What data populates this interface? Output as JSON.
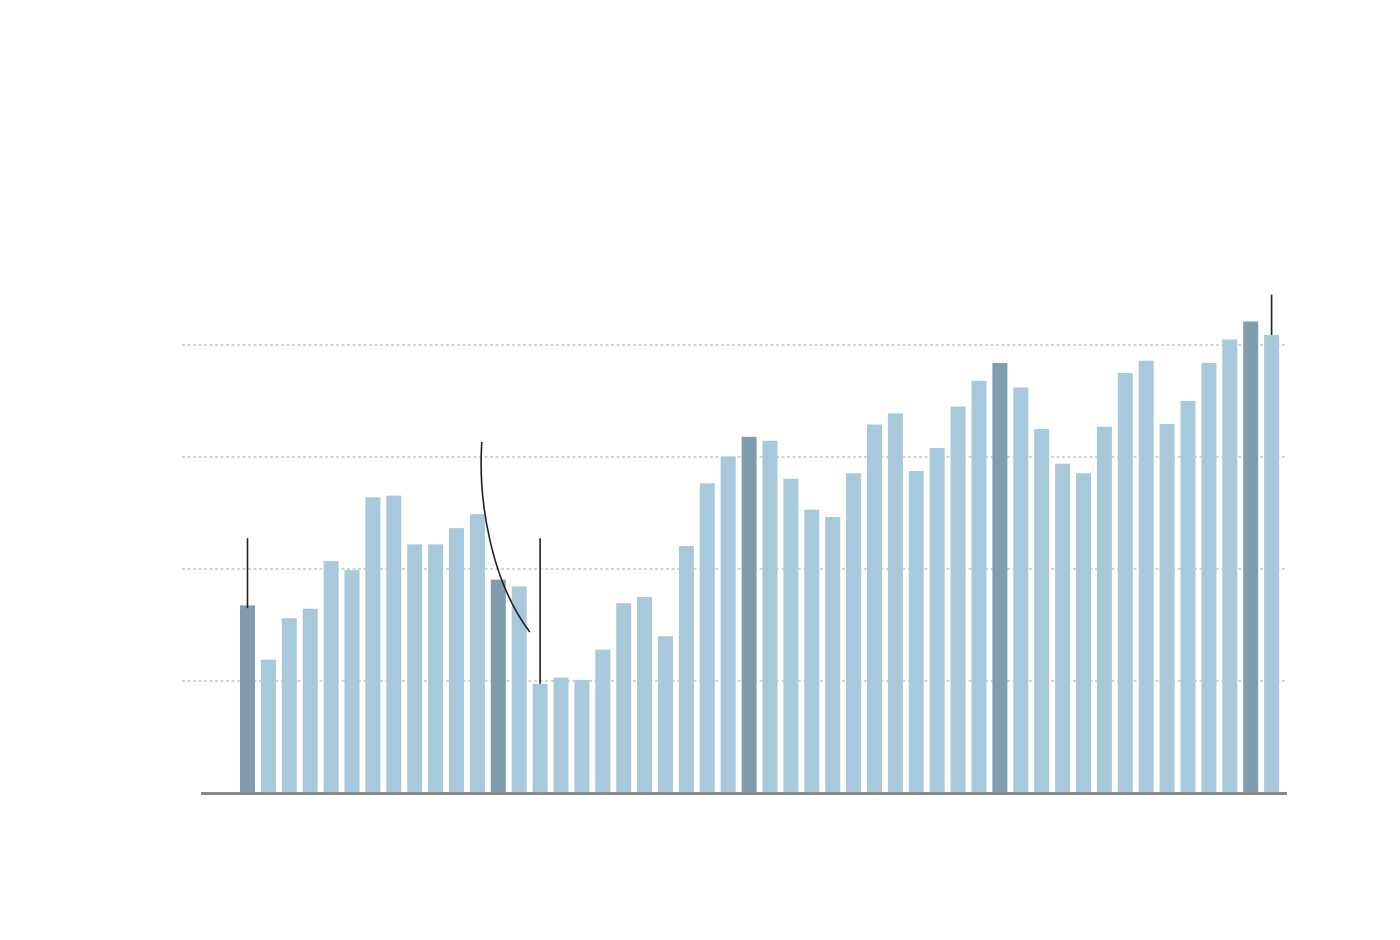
{
  "colors": {
    "bar": "#a8c8db",
    "bar_highlight": "#7f9dad",
    "baseline": "#8a8a8a",
    "grid": "#8a8a8a",
    "annotation_line": "#222222"
  },
  "chart_data": {
    "type": "bar",
    "title": "",
    "xlabel": "",
    "ylabel": "",
    "grid": true,
    "grid_style": "dashed",
    "gridline_values": [
      20,
      40,
      60,
      80
    ],
    "ylim": [
      0,
      100
    ],
    "values": [
      33.5,
      23.8,
      31.2,
      32.9,
      41.4,
      39.8,
      52.8,
      53.1,
      44.4,
      44.4,
      47.3,
      49.8,
      38.1,
      36.9,
      19.5,
      20.6,
      20.2,
      25.6,
      33.9,
      35.0,
      28.0,
      44.1,
      55.3,
      60.1,
      63.6,
      62.9,
      56.1,
      50.6,
      49.3,
      57.1,
      65.8,
      67.8,
      57.5,
      61.6,
      69.0,
      73.6,
      76.8,
      72.4,
      65.0,
      58.8,
      57.1,
      65.4,
      75.0,
      77.2,
      65.9,
      70.0,
      76.8,
      81.0,
      84.2,
      81.8
    ],
    "highlighted_indices": [
      0,
      12,
      24,
      36,
      48
    ],
    "annotations": [
      {
        "type": "vline",
        "bar_index": 0,
        "from_value": 33.0,
        "to_value": 45.5
      },
      {
        "type": "vline",
        "bar_index": 14,
        "from_value": 19.5,
        "to_value": 45.5
      },
      {
        "type": "curve",
        "near_bar_index": 12
      },
      {
        "type": "vline",
        "bar_index": 49,
        "from_value": 81.8,
        "to_value": 89.0
      }
    ]
  }
}
